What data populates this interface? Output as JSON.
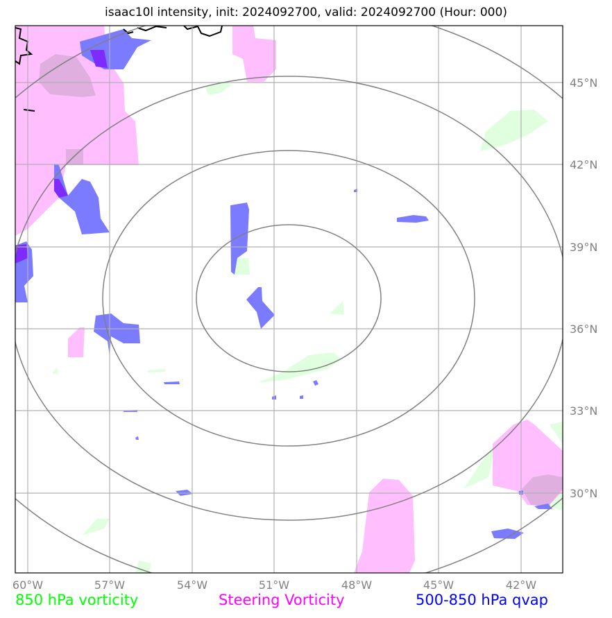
{
  "title": "isaac10l intensity, init: 2024092700, valid: 2024092700 (Hour: 000)",
  "lon_ticks": [
    "60°W",
    "57°W",
    "54°W",
    "51°W",
    "48°W",
    "45°W",
    "42°W"
  ],
  "lat_ticks": [
    "45°N",
    "42°N",
    "39°N",
    "36°N",
    "33°N",
    "30°N"
  ],
  "legend": [
    {
      "label": "850 hPa vorticity",
      "color": "#00ff00"
    },
    {
      "label": "Steering Vorticity",
      "color": "#ff00ff"
    },
    {
      "label": "500-850 hPa qvap",
      "color": "#0000ff"
    }
  ],
  "layer_colors": {
    "vorticity_850": "#dfffdf",
    "steering_vorticity": "#ffbfff",
    "qvap": "#7b7bff",
    "range_rings": "#808080",
    "gridlines": "#b0b0b0",
    "coastline": "#000000"
  }
}
